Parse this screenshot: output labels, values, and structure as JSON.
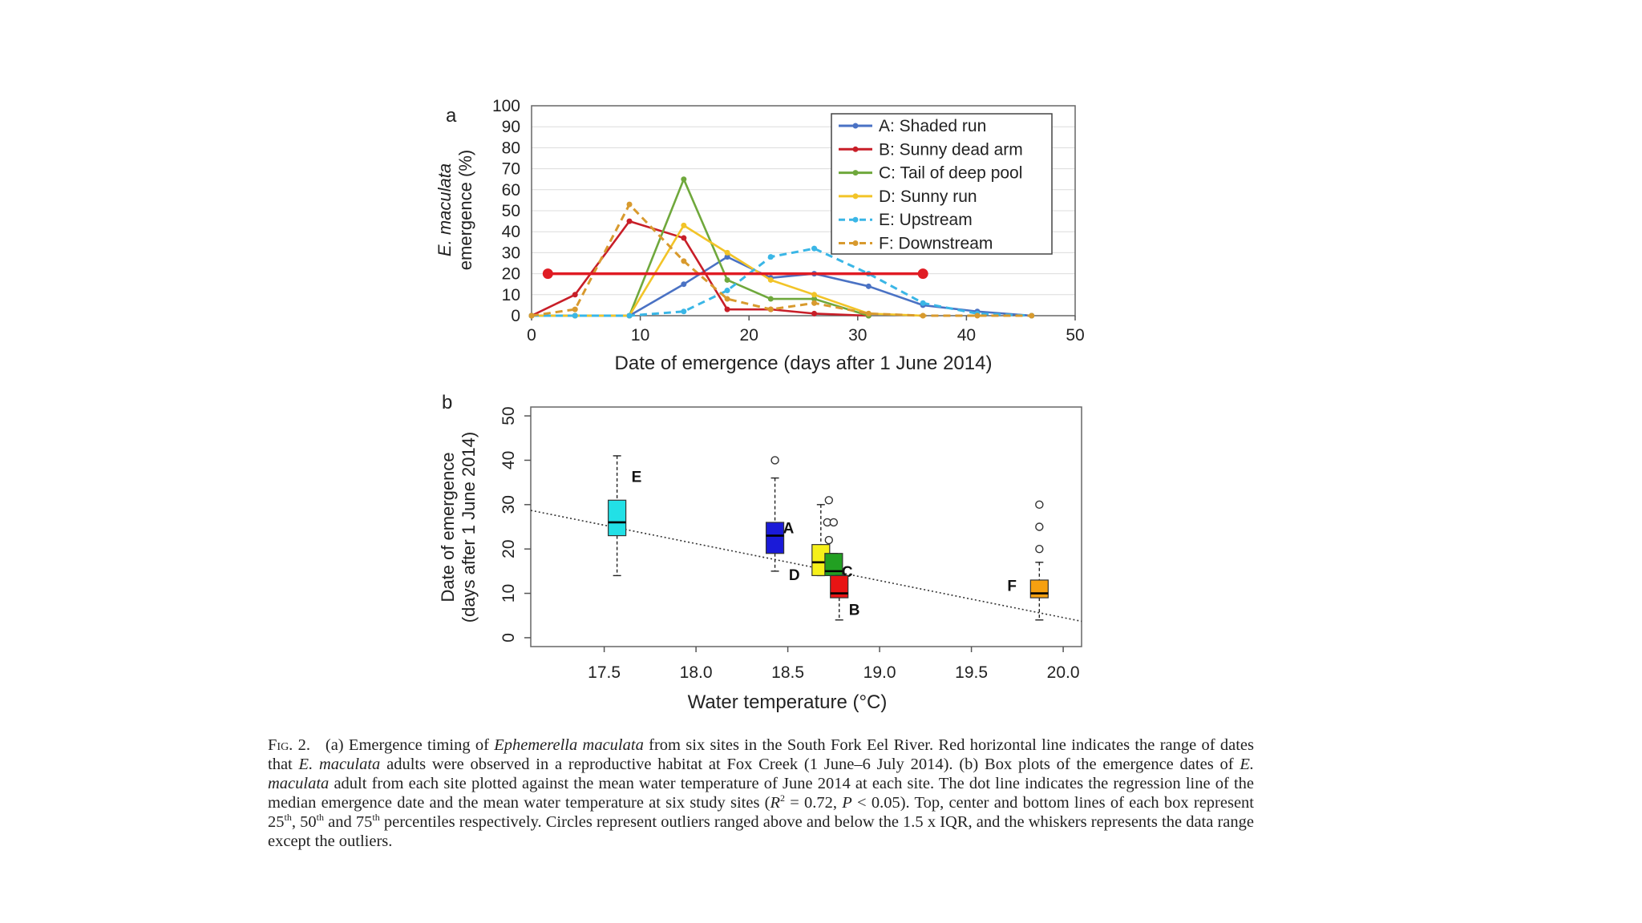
{
  "colors": {
    "A": "#4a72c4",
    "B": "#c81e28",
    "C": "#6fa83c",
    "D": "#f2c428",
    "E": "#3ab6e6",
    "F": "#d89a2e",
    "range_line": "#e01c24",
    "box_E": "#22e0e6",
    "box_A": "#1a1ad8",
    "box_D": "#f6f01a",
    "box_C": "#22a022",
    "box_B": "#e81414",
    "box_F": "#f6a010"
  },
  "chart_data": [
    {
      "type": "line",
      "panel_label": "a",
      "xlabel": "Date of emergence (days after 1 June 2014)",
      "ylabel_italic": "E. maculata",
      "ylabel_rest": "emergence (%)",
      "xlim": [
        0,
        50
      ],
      "ylim": [
        0,
        100
      ],
      "xticks": [
        "0",
        "10",
        "20",
        "30",
        "40",
        "50"
      ],
      "yticks": [
        "0",
        "10",
        "20",
        "30",
        "40",
        "50",
        "60",
        "70",
        "80",
        "90",
        "100"
      ],
      "legend_position": "top-right",
      "series": [
        {
          "key": "A",
          "name": "A: Shaded run",
          "style": "solid",
          "x": [
            0,
            4,
            9,
            14,
            18,
            22,
            26,
            31,
            36,
            41,
            46
          ],
          "y": [
            0,
            0,
            0,
            15,
            28,
            18,
            20,
            14,
            5,
            2,
            0
          ]
        },
        {
          "key": "B",
          "name": "B: Sunny dead arm",
          "style": "solid",
          "x": [
            0,
            4,
            9,
            14,
            18,
            22,
            26,
            31
          ],
          "y": [
            0,
            10,
            45,
            37,
            3,
            3,
            1,
            0
          ]
        },
        {
          "key": "C",
          "name": "C: Tail of deep pool",
          "style": "solid",
          "x": [
            0,
            4,
            9,
            14,
            18,
            22,
            26,
            31
          ],
          "y": [
            0,
            0,
            0,
            65,
            17,
            8,
            8,
            0
          ]
        },
        {
          "key": "D",
          "name": "D: Sunny run",
          "style": "solid",
          "x": [
            0,
            4,
            9,
            14,
            18,
            22,
            26,
            31,
            36
          ],
          "y": [
            0,
            0,
            0,
            43,
            30,
            17,
            10,
            1,
            0
          ]
        },
        {
          "key": "E",
          "name": "E: Upstream",
          "style": "dashed",
          "x": [
            0,
            4,
            9,
            14,
            18,
            22,
            26,
            31,
            36,
            41,
            46
          ],
          "y": [
            0,
            0,
            0,
            2,
            12,
            28,
            32,
            20,
            6,
            1,
            0
          ]
        },
        {
          "key": "F",
          "name": "F: Downstream",
          "style": "dashed",
          "x": [
            0,
            4,
            9,
            14,
            18,
            22,
            26,
            31,
            36,
            41,
            46
          ],
          "y": [
            0,
            3,
            53,
            26,
            8,
            3,
            6,
            1,
            0,
            0,
            0
          ]
        }
      ],
      "range_line": {
        "x": [
          1.5,
          36
        ],
        "y": 20
      }
    },
    {
      "type": "box",
      "panel_label": "b",
      "xlabel": "Water temperature (°C)",
      "ylabel_line1": "Date of emergence",
      "ylabel_line2": "(days after 1 June 2014)",
      "xlim": [
        17.1,
        20.1
      ],
      "ylim": [
        -2,
        52
      ],
      "xticks": [
        "17.5",
        "18.0",
        "18.5",
        "19.0",
        "19.5",
        "20.0"
      ],
      "yticks": [
        "0",
        "10",
        "20",
        "30",
        "40",
        "50"
      ],
      "boxes": [
        {
          "key": "E",
          "label": "E",
          "x": 17.57,
          "min": 14,
          "q1": 23,
          "median": 26,
          "q3": 31,
          "max": 41,
          "outliers": []
        },
        {
          "key": "A",
          "label": "A",
          "x": 18.43,
          "min": 15,
          "q1": 19,
          "median": 23,
          "q3": 26,
          "max": 36,
          "outliers": [
            40
          ]
        },
        {
          "key": "D",
          "label": "D",
          "x": 18.68,
          "min": 14,
          "q1": 14,
          "median": 17,
          "q3": 21,
          "max": 30,
          "outliers": [
            31,
            26,
            26,
            22
          ]
        },
        {
          "key": "C",
          "label": "C",
          "x": 18.75,
          "min": 14,
          "q1": 14,
          "median": 15,
          "q3": 19,
          "max": 19,
          "outliers": []
        },
        {
          "key": "B",
          "label": "B",
          "x": 18.78,
          "min": 4,
          "q1": 9,
          "median": 10,
          "q3": 14,
          "max": 14,
          "outliers": []
        },
        {
          "key": "F",
          "label": "F",
          "x": 19.87,
          "min": 4,
          "q1": 9,
          "median": 10,
          "q3": 13,
          "max": 17,
          "outliers": [
            20,
            25,
            30
          ]
        }
      ],
      "regression": {
        "x": [
          17.1,
          20.1
        ],
        "y": [
          28.7,
          3.7
        ]
      }
    }
  ],
  "caption": {
    "fig_label": "Fig. 2.",
    "p1a": "(a) Emergence timing of ",
    "species": "Ephemerella maculata",
    "p1b": " from six sites in the South Fork Eel River. Red horizontal line indicates the range of dates that ",
    "species_short": "E. maculata",
    "p1c": " adults were observed in a reproductive habitat at Fox Creek (1 June–6 July 2014). (b) Box plots of the emergence dates of ",
    "species_short2": "E. maculata",
    "p1d": " adult from each site plotted against the mean water temperature of June 2014 at each site. The dot line indicates the regression line of the median emergence date and the mean water temperature at six study sites (",
    "r2_sym": "R",
    "r2_sup": "2",
    "r2_val": " = 0.72, ",
    "p_sym": "P",
    "p1e": " < 0.05). Top, center and bottom lines of each box represent 25",
    "sup1": "th",
    "p1f": ", 50",
    "sup2": "th",
    "p1g": " and 75",
    "sup3": "th",
    "p1h": " percentiles respectively. Circles represent outliers ranged above and below the 1.5 x IQR, and the whiskers represents the data range except the outliers."
  }
}
